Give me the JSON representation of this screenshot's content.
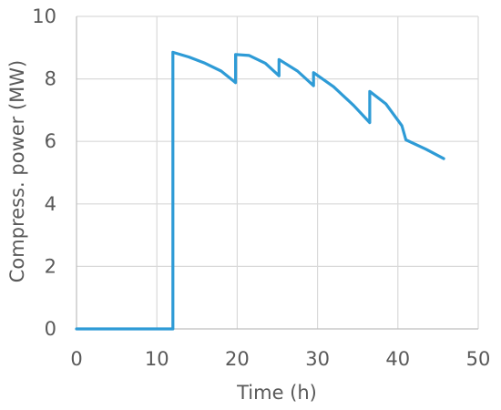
{
  "chart_data": {
    "type": "line",
    "title": "",
    "xlabel": "Time (h)",
    "ylabel": "Compress. power (MW)",
    "xlim": [
      0,
      50
    ],
    "ylim": [
      0,
      10
    ],
    "xticks": [
      0,
      10,
      20,
      30,
      40,
      50
    ],
    "yticks": [
      0,
      2,
      4,
      6,
      8,
      10
    ],
    "xtick_labels": [
      "0",
      "10",
      "20",
      "30",
      "40",
      "50"
    ],
    "ytick_labels": [
      "0",
      "2",
      "4",
      "6",
      "8",
      "10"
    ],
    "grid": "vertical-and-horizontal",
    "legend": "none",
    "series": [
      {
        "color": "#2e9bd6",
        "points": [
          [
            0,
            0
          ],
          [
            12,
            0
          ],
          [
            12,
            8.85
          ],
          [
            14,
            8.7
          ],
          [
            16,
            8.5
          ],
          [
            18,
            8.25
          ],
          [
            19.8,
            7.88
          ],
          [
            19.8,
            8.78
          ],
          [
            21.5,
            8.75
          ],
          [
            23.5,
            8.5
          ],
          [
            25.2,
            8.1
          ],
          [
            25.2,
            8.62
          ],
          [
            27.5,
            8.25
          ],
          [
            29.5,
            7.78
          ],
          [
            29.5,
            8.2
          ],
          [
            32,
            7.75
          ],
          [
            34.5,
            7.15
          ],
          [
            36.5,
            6.6
          ],
          [
            36.5,
            7.6
          ],
          [
            38.5,
            7.2
          ],
          [
            40.5,
            6.5
          ],
          [
            41,
            6.05
          ],
          [
            43.5,
            5.75
          ],
          [
            45.7,
            5.45
          ]
        ]
      }
    ]
  }
}
